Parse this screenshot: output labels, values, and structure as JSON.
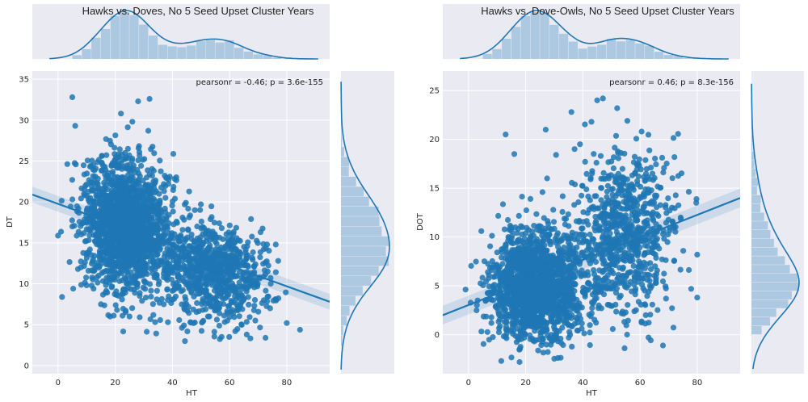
{
  "chart_data": [
    {
      "type": "scatter",
      "title": "Hawks vs. Doves, No 5 Seed Upset Cluster Years",
      "xlabel": "HT",
      "ylabel": "DT",
      "xlim": [
        -9,
        95
      ],
      "ylim": [
        -1,
        36
      ],
      "x_ticks": [
        0,
        20,
        40,
        60,
        80
      ],
      "y_ticks": [
        0,
        5,
        10,
        15,
        20,
        25,
        30,
        35
      ],
      "grid": true,
      "annotation": "pearsonr = -0.46; p = 3.6e-155",
      "regression": {
        "x": [
          -9,
          95
        ],
        "y": [
          20.9,
          7.8
        ]
      },
      "clusters": [
        {
          "cx": 24,
          "cy": 17,
          "sx": 8,
          "sy": 4,
          "n": 1700,
          "rho": -0.1
        },
        {
          "cx": 55,
          "cy": 11.5,
          "sx": 9,
          "sy": 3,
          "n": 800,
          "rho": -0.15
        }
      ],
      "outliers": [
        [
          5,
          32.8
        ],
        [
          28,
          32.3
        ],
        [
          32,
          32.6
        ],
        [
          22,
          30.8
        ],
        [
          6,
          29.3
        ],
        [
          26,
          29.8
        ],
        [
          80,
          5.2
        ],
        [
          66,
          3.8
        ],
        [
          62,
          4.2
        ],
        [
          69,
          5.5
        ],
        [
          72,
          8
        ],
        [
          15,
          7.5
        ],
        [
          25,
          6
        ],
        [
          5,
          17
        ],
        [
          8,
          12
        ],
        [
          10,
          9.8
        ]
      ],
      "marginal_x": {
        "label": "HT histogram with KDE",
        "bins_from": 5,
        "bins_to": 85
      },
      "marginal_y": {
        "label": "DT histogram with KDE"
      }
    },
    {
      "type": "scatter",
      "title": "Hawks vs. Dove-Owls, No 5 Seed Upset Cluster Years",
      "xlabel": "HT",
      "ylabel": "DOT",
      "xlim": [
        -9,
        95
      ],
      "ylim": [
        -4,
        27
      ],
      "x_ticks": [
        0,
        20,
        40,
        60,
        80
      ],
      "y_ticks": [
        0,
        5,
        10,
        15,
        20,
        25
      ],
      "grid": true,
      "annotation": "pearsonr = 0.46; p = 8.3e-156",
      "regression": {
        "x": [
          -9,
          95
        ],
        "y": [
          2.0,
          14.0
        ]
      },
      "clusters": [
        {
          "cx": 24,
          "cy": 5,
          "sx": 8,
          "sy": 2.7,
          "n": 1700,
          "rho": 0.05
        },
        {
          "cx": 54,
          "cy": 10,
          "sx": 9,
          "sy": 4,
          "n": 800,
          "rho": 0.1
        }
      ],
      "outliers": [
        [
          36,
          22.8
        ],
        [
          45,
          24
        ],
        [
          47,
          24.2
        ],
        [
          52,
          23.2
        ],
        [
          43,
          21.8
        ],
        [
          27,
          21
        ],
        [
          13,
          20.5
        ],
        [
          39,
          19.5
        ],
        [
          16,
          18.5
        ],
        [
          15,
          11
        ],
        [
          80,
          8.2
        ],
        [
          80,
          3.8
        ],
        [
          62,
          2
        ],
        [
          8,
          1.2
        ]
      ],
      "marginal_x": {
        "label": "HT histogram with KDE",
        "bins_from": 5,
        "bins_to": 85
      },
      "marginal_y": {
        "label": "DOT histogram with KDE"
      }
    }
  ],
  "colors": {
    "points": "#1f77b4",
    "line": "#1f77b4",
    "hist": "#a6c4df",
    "panel_bg": "#eaeaf2",
    "grid": "#ffffff"
  }
}
